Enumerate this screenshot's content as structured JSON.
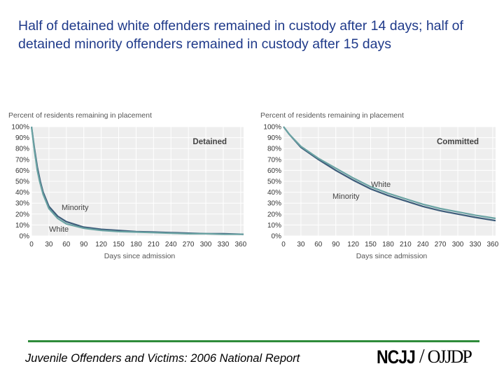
{
  "title": "Half of detained white offenders remained in custody after 14 days; half of detained minority offenders remained in custody after 15 days",
  "footer": {
    "text": "Juvenile Offenders and Victims: 2006 National Report",
    "logo_left": "NCJJ",
    "logo_slash": "/",
    "logo_right": "OJJDP",
    "rule_color": "#2e8b3a"
  },
  "chart_data": [
    {
      "type": "line",
      "corner_label": "Detained",
      "ylabel": "Percent of residents remaining in placement",
      "xlabel": "Days since admission",
      "x_ticks": [
        0,
        30,
        60,
        90,
        120,
        150,
        180,
        210,
        240,
        270,
        300,
        330,
        360
      ],
      "y_ticks": [
        "0%",
        "10%",
        "20%",
        "30%",
        "40%",
        "50%",
        "60%",
        "70%",
        "80%",
        "90%",
        "100%"
      ],
      "xlim": [
        0,
        365
      ],
      "ylim": [
        0,
        100
      ],
      "series": [
        {
          "name": "Minority",
          "color": "#3d5c7a",
          "x": [
            0,
            5,
            10,
            15,
            20,
            30,
            45,
            60,
            90,
            120,
            150,
            180,
            210,
            240,
            270,
            300,
            330,
            365
          ],
          "values": [
            100,
            80,
            63,
            50,
            40,
            27,
            18,
            13,
            8,
            6,
            5,
            4,
            3.5,
            3,
            2.5,
            2,
            2,
            1.5
          ]
        },
        {
          "name": "White",
          "color": "#6aa3a3",
          "x": [
            0,
            5,
            10,
            14,
            20,
            30,
            45,
            60,
            90,
            120,
            150,
            180,
            210,
            240,
            270,
            300,
            330,
            365
          ],
          "values": [
            100,
            78,
            60,
            50,
            38,
            25,
            16,
            11,
            7,
            5,
            4,
            3.5,
            3,
            2.5,
            2,
            2,
            1.5,
            1.5
          ]
        }
      ]
    },
    {
      "type": "line",
      "corner_label": "Committed",
      "ylabel": "Percent of residents remaining in placement",
      "xlabel": "Days since admission",
      "x_ticks": [
        0,
        30,
        60,
        90,
        120,
        150,
        180,
        210,
        240,
        270,
        300,
        330,
        360
      ],
      "y_ticks": [
        "0%",
        "10%",
        "20%",
        "30%",
        "40%",
        "50%",
        "60%",
        "70%",
        "80%",
        "90%",
        "100%"
      ],
      "xlim": [
        0,
        365
      ],
      "ylim": [
        0,
        100
      ],
      "series": [
        {
          "name": "Minority",
          "color": "#3d5c7a",
          "x": [
            0,
            10,
            30,
            60,
            90,
            120,
            150,
            180,
            210,
            240,
            270,
            300,
            330,
            365
          ],
          "values": [
            100,
            93,
            81,
            70,
            60,
            51,
            43,
            37,
            32,
            27,
            23,
            20,
            17,
            14
          ]
        },
        {
          "name": "White",
          "color": "#6aa3a3",
          "x": [
            0,
            10,
            30,
            60,
            90,
            120,
            150,
            180,
            210,
            240,
            270,
            300,
            330,
            365
          ],
          "values": [
            100,
            93,
            82,
            71,
            62,
            53,
            45,
            39,
            34,
            29,
            25,
            22,
            19,
            16
          ]
        }
      ]
    }
  ]
}
